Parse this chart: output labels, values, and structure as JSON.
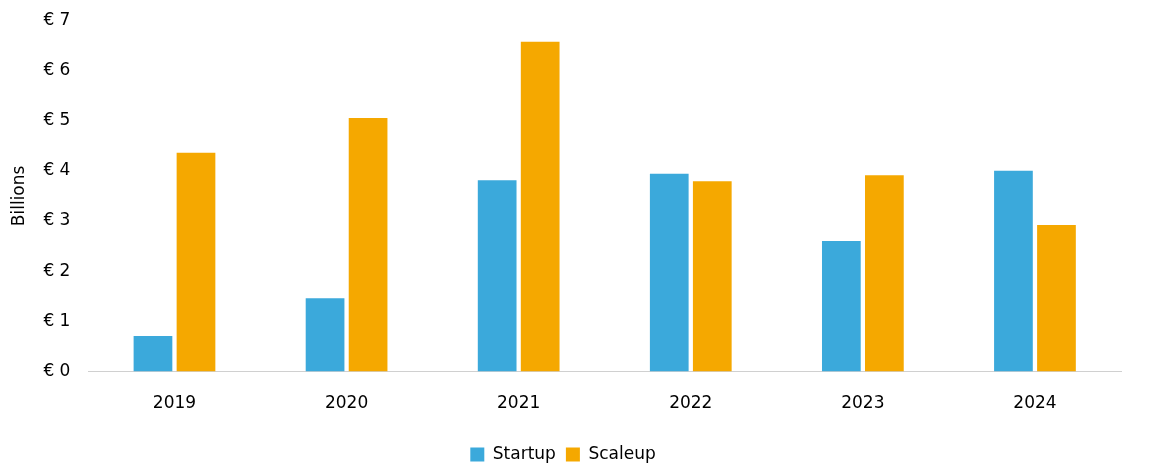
{
  "chart_data": {
    "type": "bar",
    "ylabel": "Billions",
    "categories": [
      "2019",
      "2020",
      "2021",
      "2022",
      "2023",
      "2024"
    ],
    "series": [
      {
        "name": "Startup",
        "color": "#3ba9db",
        "values": [
          0.71,
          1.46,
          3.81,
          3.94,
          2.6,
          4.0
        ]
      },
      {
        "name": "Scaleup",
        "color": "#f5a800",
        "values": [
          4.36,
          5.05,
          6.57,
          3.79,
          3.91,
          2.92
        ]
      }
    ],
    "ylim": [
      0,
      7
    ],
    "yticks": [
      {
        "value": 0,
        "label": "€ 0"
      },
      {
        "value": 1,
        "label": "€ 1"
      },
      {
        "value": 2,
        "label": "€ 2"
      },
      {
        "value": 3,
        "label": "€ 3"
      },
      {
        "value": 4,
        "label": "€ 4"
      },
      {
        "value": 5,
        "label": "€ 5"
      },
      {
        "value": 6,
        "label": "€ 6"
      },
      {
        "value": 7,
        "label": "€ 7"
      }
    ],
    "grid": false,
    "legend": "bottom"
  }
}
